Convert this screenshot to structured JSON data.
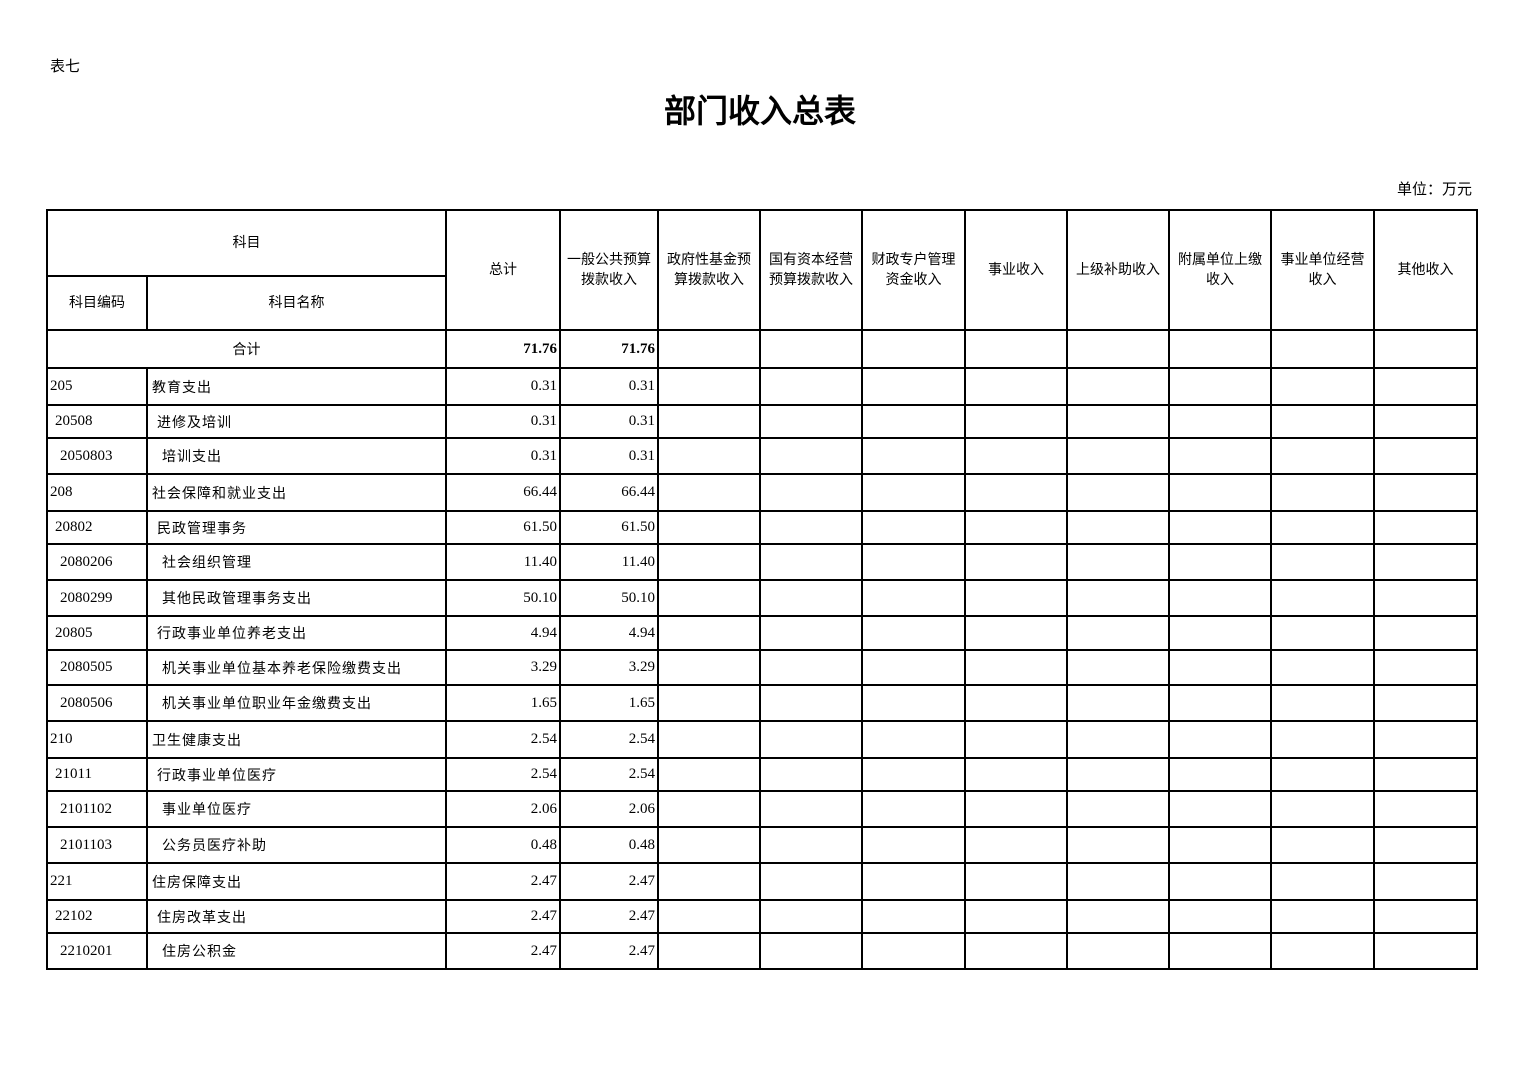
{
  "tag": "表七",
  "title": "部门收入总表",
  "unit": "单位：万元",
  "headers": {
    "subject": "科目",
    "code": "科目编码",
    "name": "科目名称",
    "total": "总计",
    "general": "一般公共预算拨款收入",
    "gov_fund": "政府性基金预算拨款收入",
    "state_capital": "国有资本经营预算拨款收入",
    "special_account": "财政专户管理资金收入",
    "business": "事业收入",
    "superior": "上级补助收入",
    "affiliated": "附属单位上缴收入",
    "operating": "事业单位经营收入",
    "other": "其他收入"
  },
  "total_row": {
    "label": "合计",
    "total": "71.76",
    "general": "71.76"
  },
  "rows": [
    {
      "code": "205",
      "name": "教育支出",
      "total": "0.31",
      "general": "0.31",
      "level": 1
    },
    {
      "code": "20508",
      "name": "进修及培训",
      "total": "0.31",
      "general": "0.31",
      "level": 2
    },
    {
      "code": "2050803",
      "name": "培训支出",
      "total": "0.31",
      "general": "0.31",
      "level": 3
    },
    {
      "code": "208",
      "name": "社会保障和就业支出",
      "total": "66.44",
      "general": "66.44",
      "level": 1
    },
    {
      "code": "20802",
      "name": "民政管理事务",
      "total": "61.50",
      "general": "61.50",
      "level": 2
    },
    {
      "code": "2080206",
      "name": "社会组织管理",
      "total": "11.40",
      "general": "11.40",
      "level": 3
    },
    {
      "code": "2080299",
      "name": "其他民政管理事务支出",
      "total": "50.10",
      "general": "50.10",
      "level": 3
    },
    {
      "code": "20805",
      "name": "行政事业单位养老支出",
      "total": "4.94",
      "general": "4.94",
      "level": 2
    },
    {
      "code": "2080505",
      "name": "机关事业单位基本养老保险缴费支出",
      "total": "3.29",
      "general": "3.29",
      "level": 3
    },
    {
      "code": "2080506",
      "name": "机关事业单位职业年金缴费支出",
      "total": "1.65",
      "general": "1.65",
      "level": 3
    },
    {
      "code": "210",
      "name": "卫生健康支出",
      "total": "2.54",
      "general": "2.54",
      "level": 1
    },
    {
      "code": "21011",
      "name": "行政事业单位医疗",
      "total": "2.54",
      "general": "2.54",
      "level": 2
    },
    {
      "code": "2101102",
      "name": "事业单位医疗",
      "total": "2.06",
      "general": "2.06",
      "level": 3
    },
    {
      "code": "2101103",
      "name": "公务员医疗补助",
      "total": "0.48",
      "general": "0.48",
      "level": 3
    },
    {
      "code": "221",
      "name": "住房保障支出",
      "total": "2.47",
      "general": "2.47",
      "level": 1
    },
    {
      "code": "22102",
      "name": "住房改革支出",
      "total": "2.47",
      "general": "2.47",
      "level": 2
    },
    {
      "code": "2210201",
      "name": "住房公积金",
      "total": "2.47",
      "general": "2.47",
      "level": 3
    }
  ]
}
